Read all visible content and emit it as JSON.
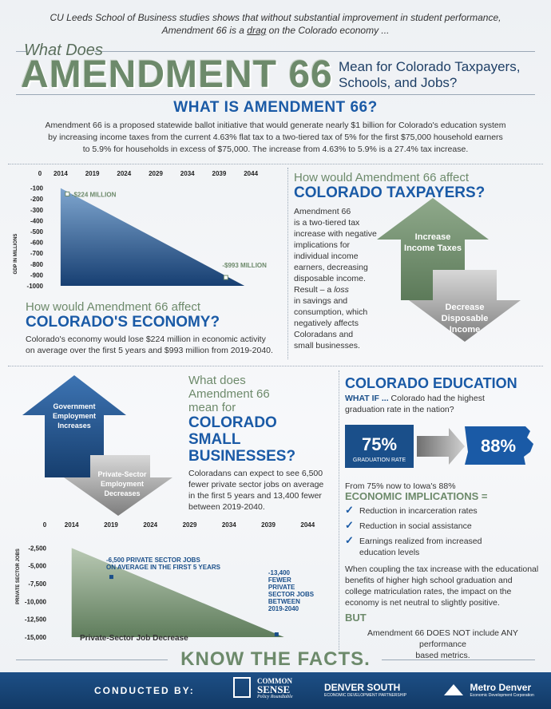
{
  "header": {
    "intro_line1": "CU Leeds School of Business studies shows that without substantial improvement in student performance,",
    "intro_line2_pre": "Amendment 66 is a ",
    "intro_line2_em": "drag",
    "intro_line2_post": " on the Colorado economy ...",
    "what_does": "What Does",
    "amendment": "AMENDMENT 66",
    "mean_line1": "Mean for Colorado Taxpayers,",
    "mean_line2": "Schools, and Jobs?"
  },
  "what_is": {
    "title": "WHAT IS AMENDMENT 66?",
    "line1": "Amendment 66 is a proposed statewide ballot initiative that would generate nearly $1 billion for Colorado's education system",
    "line2": "by increasing income taxes from the current 4.63% flat tax to a two-tiered tax of 5% for the first $75,000 household earners",
    "line3": "to 5.9% for households in excess of $75,000. The increase from 4.63% to 5.9% is a 27.4% tax increase."
  },
  "gdp_chart": {
    "ylabel": "GDP IN MILLIONS",
    "ann1": "-$224 MILLION",
    "ann2": "-$993 MILLION"
  },
  "economy": {
    "h1": "How would Amendment 66 affect",
    "h2": "COLORADO'S ECONOMY?",
    "line1": "Colorado's economy would lose $224 million in economic activity",
    "line2": "on average over the first 5 years and $993 million from 2019-2040."
  },
  "taxpayers": {
    "h1": "How would Amendment 66 affect",
    "h2": "COLORADO TAXPAYERS?",
    "body": [
      "Amendment 66",
      "is a two-tiered tax",
      "increase with negative",
      "implications for",
      "individual income",
      "earners, decreasing",
      "disposable income."
    ],
    "result_pre": "Result – a ",
    "result_em": "loss",
    "body2": [
      "in savings and",
      "consumption, which",
      "negatively affects",
      "Coloradans and",
      "small businesses."
    ],
    "arrow_up": [
      "Increase",
      "Income Taxes"
    ],
    "arrow_down": [
      "Decrease",
      "Disposable",
      "Income"
    ]
  },
  "small_biz": {
    "h1": [
      "What does",
      "Amendment 66",
      "mean for"
    ],
    "h2": [
      "COLORADO",
      "SMALL",
      "BUSINESSES?"
    ],
    "body": [
      "Coloradans can expect to see 6,500",
      "fewer private sector jobs on average",
      "in the first 5 years and 13,400 fewer",
      "between 2019-2040."
    ],
    "arrow_up": [
      "Government",
      "Employment",
      "Increases"
    ],
    "arrow_down": [
      "Private-Sector",
      "Employment",
      "Decreases"
    ]
  },
  "jobs_chart": {
    "ylabel": "PRIVATE SECTOR JOBS",
    "ann1": [
      "-6,500 PRIVATE SECTOR JOBS",
      "ON AVERAGE IN THE FIRST 5 YEARS"
    ],
    "ann2": [
      "-13,400",
      "FEWER",
      "PRIVATE",
      "SECTOR JOBS",
      "BETWEEN",
      "2019-2040"
    ],
    "caption": "Private-Sector Job Decrease"
  },
  "education": {
    "title": "COLORADO EDUCATION",
    "whatif_em": "WHAT IF ...",
    "whatif_rest": " Colorado had the highest",
    "whatif_line2": "graduation rate in the nation?",
    "co_pct": "75%",
    "co_label": "GRADUATION RATE",
    "ia_pct": "88%",
    "from_text": "From 75% now to Iowa's 88%",
    "implications_title": "ECONOMIC IMPLICATIONS =",
    "implications": [
      "Reduction in incarceration rates",
      "Reduction in social assistance",
      "Earnings realized from increased",
      "education levels"
    ],
    "coupling": [
      "When coupling the tax increase with the educational",
      "benefits of higher high school graduation and",
      "college matriculation rates, the impact on the",
      "economy is net neutral to slightly positive."
    ],
    "but": "BUT",
    "but_text": [
      "Amendment 66 DOES NOT include ANY performance",
      "based metrics."
    ]
  },
  "footer": {
    "know": "KNOW THE FACTS.",
    "conducted": "CONDUCTED BY:",
    "logo1_a": "COMMON",
    "logo1_b": "SENSE",
    "logo1_c": "Policy Roundtable",
    "logo2_a": "DENVER SOUTH",
    "logo2_b": "ECONOMIC DEVELOPMENT PARTNERSHIP",
    "logo3_a": "Metro Denver",
    "logo3_b": "Economic Development Corporation"
  },
  "chart_data": [
    {
      "type": "area",
      "x_ticks": [
        "0",
        "2014",
        "2019",
        "2024",
        "2029",
        "2034",
        "2039",
        "2044"
      ],
      "y_ticks": [
        "-100",
        "-200",
        "-300",
        "-400",
        "-500",
        "-600",
        "-700",
        "-800",
        "-900",
        "-1000"
      ],
      "ylabel": "GDP IN MILLIONS",
      "ylim": [
        -1000,
        0
      ],
      "x": [
        2014,
        2043
      ],
      "y": [
        -224,
        -993
      ],
      "annotations": [
        "-$224 MILLION",
        "-$993 MILLION"
      ]
    },
    {
      "type": "area",
      "x_ticks": [
        "0",
        "2014",
        "2019",
        "2024",
        "2029",
        "2034",
        "2039",
        "2044"
      ],
      "y_ticks": [
        "-2,500",
        "-5,000",
        "-7,500",
        "-10,000",
        "-12,500",
        "-15,000"
      ],
      "ylabel": "PRIVATE SECTOR JOBS",
      "ylim": [
        -15000,
        0
      ],
      "x": [
        2014,
        2041
      ],
      "y": [
        -2500,
        -15000
      ],
      "points": [
        {
          "x": 2019,
          "y": -6500
        },
        {
          "x": 2040,
          "y": -13400
        }
      ],
      "annotations": [
        "-6,500 PRIVATE SECTOR JOBS ON AVERAGE IN THE FIRST 5 YEARS",
        "-13,400 FEWER PRIVATE SECTOR JOBS BETWEEN 2019-2040"
      ],
      "caption": "Private-Sector Job Decrease"
    }
  ]
}
